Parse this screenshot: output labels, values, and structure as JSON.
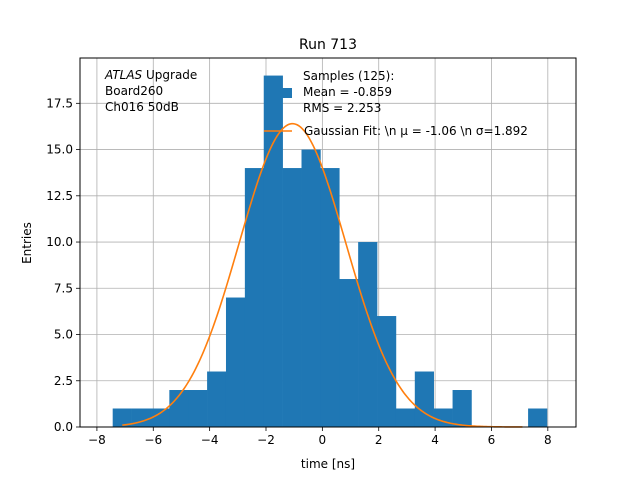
{
  "chart_data": {
    "type": "bar",
    "title": "Run 713",
    "xlabel": "time [ns]",
    "ylabel": "Entries",
    "xlim": [
      -8.6,
      9.0
    ],
    "ylim": [
      0,
      19.95
    ],
    "grid": true,
    "x_ticks": [
      -8,
      -6,
      -4,
      -2,
      0,
      2,
      4,
      6,
      8
    ],
    "x_tick_labels": [
      "−8",
      "−6",
      "−4",
      "−2",
      "0",
      "2",
      "4",
      "6",
      "8"
    ],
    "y_ticks": [
      0,
      2.5,
      5,
      7.5,
      10,
      12.5,
      15,
      17.5
    ],
    "y_tick_labels": [
      "0.0",
      "2.5",
      "5.0",
      "7.5",
      "10.0",
      "12.5",
      "15.0",
      "17.5"
    ],
    "histogram": {
      "bin_edges": [
        -7.44,
        -6.77,
        -6.1,
        -5.43,
        -4.76,
        -4.09,
        -3.42,
        -2.75,
        -2.08,
        -1.41,
        -0.74,
        -0.07,
        0.6,
        1.27,
        1.94,
        2.61,
        3.28,
        3.95,
        4.62,
        5.29,
        5.96,
        6.63,
        7.3,
        7.97
      ],
      "counts": [
        1,
        1,
        1,
        2,
        2,
        3,
        7,
        14,
        19,
        14,
        15,
        14,
        8,
        10,
        6,
        1,
        3,
        1,
        2,
        0,
        0,
        0,
        1
      ],
      "color": "#1f77b4"
    },
    "fit": {
      "type": "gaussian",
      "amplitude": 16.4,
      "mu": -1.06,
      "sigma": 1.892,
      "x_range": [
        -7.1,
        7.1
      ],
      "color": "#ff7f0e"
    },
    "annotation_lines": [
      {
        "italic": "ATLAS",
        "rest": " Upgrade"
      },
      {
        "italic": "",
        "rest": " Board260"
      },
      {
        "italic": "",
        "rest": " Ch016 50dB"
      }
    ],
    "legend": {
      "placement": "top-right",
      "hist_label_lines": [
        "Samples (125):",
        " Mean = -0.859",
        " RMS = 2.253"
      ],
      "fit_label": "Gaussian Fit: \\n μ = -1.06 \\n σ=1.892"
    }
  }
}
